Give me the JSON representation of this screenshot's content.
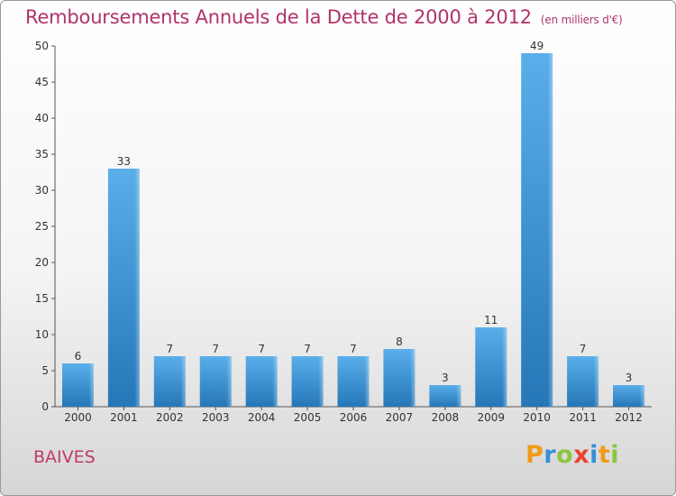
{
  "header": {
    "title": "Remboursements Annuels de la Dette de 2000 à 2012",
    "unit": "(en milliers d'€)"
  },
  "footer": {
    "place": "BAIVES",
    "brand_letters": [
      "P",
      "r",
      "o",
      "x",
      "i",
      "t",
      "i"
    ],
    "brand_colors": [
      "#f29a1a",
      "#3a8fd6",
      "#8cc63f",
      "#e8432e",
      "#3a8fd6",
      "#f29a1a",
      "#8cc63f"
    ]
  },
  "chart_data": {
    "type": "bar",
    "categories": [
      "2000",
      "2001",
      "2002",
      "2003",
      "2004",
      "2005",
      "2006",
      "2007",
      "2008",
      "2009",
      "2010",
      "2011",
      "2012"
    ],
    "values": [
      6,
      33,
      7,
      7,
      7,
      7,
      7,
      8,
      3,
      11,
      49,
      7,
      3
    ],
    "title": "Remboursements Annuels de la Dette de 2000 à 2012",
    "xlabel": "",
    "ylabel": "",
    "ylim": [
      0,
      50
    ],
    "yticks": [
      0,
      5,
      10,
      15,
      20,
      25,
      30,
      35,
      40,
      45,
      50
    ],
    "bar_color": "#4a9fe0",
    "grid": false,
    "legend": "none"
  }
}
